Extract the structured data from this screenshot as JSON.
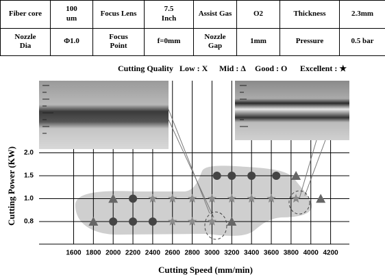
{
  "table": {
    "rows": [
      [
        "Fiber core",
        "100\num",
        "Focus Lens",
        "7.5\nInch",
        "Assist Gas",
        "O2",
        "Thickness",
        "2.3mm"
      ],
      [
        "Nozzle\nDia",
        "Φ1.0",
        "Focus\nPoint",
        "f=0mm",
        "Nozzle\nGap",
        "1mm",
        "Pressure",
        "0.5 bar"
      ]
    ]
  },
  "chart_data": {
    "type": "scatter",
    "legend_title": "Cutting Quality",
    "xlabel": "Cutting Speed (mm/min)",
    "ylabel": "Cutting Power (KW)",
    "xlim": [
      1250,
      4390
    ],
    "xticks": [
      1600,
      1800,
      2000,
      2200,
      2400,
      2600,
      2800,
      3000,
      3200,
      3400,
      3600,
      3800,
      4000,
      4200
    ],
    "yscale": "category",
    "yticks": [
      {
        "value": 0.8,
        "label": "0.8"
      },
      {
        "value": 1,
        "label": "1.0"
      },
      {
        "value": 1.5,
        "label": "1.5"
      },
      {
        "value": 2,
        "label": "2.0"
      }
    ],
    "grid": true,
    "series": [
      {
        "name": "Low : X",
        "color": "#333333",
        "marker": "x",
        "x": [],
        "values": []
      },
      {
        "name": "Mid : Δ",
        "color": "#666666",
        "marker": "triangle",
        "x": [
          1800,
          2000,
          3200,
          3850,
          4100
        ],
        "values": [
          0.8,
          1,
          0.8,
          1.5,
          1
        ]
      },
      {
        "name": "Good : O",
        "color": "#444444",
        "marker": "circle",
        "x": [
          2000,
          2200,
          2400,
          2200,
          3050,
          3200,
          3400,
          3650
        ],
        "values": [
          0.8,
          0.8,
          0.8,
          1,
          1.5,
          1.5,
          1.5,
          1.5
        ]
      },
      {
        "name": "Excellent : ★",
        "color": "#8a8a8a",
        "marker": "star",
        "x": [
          2400,
          2600,
          2800,
          3000,
          3200,
          3400,
          3600,
          3850,
          2600,
          2800,
          3000
        ],
        "values": [
          1,
          1,
          1,
          1,
          1,
          1,
          1,
          1,
          0.8,
          0.8,
          0.8
        ]
      }
    ]
  }
}
